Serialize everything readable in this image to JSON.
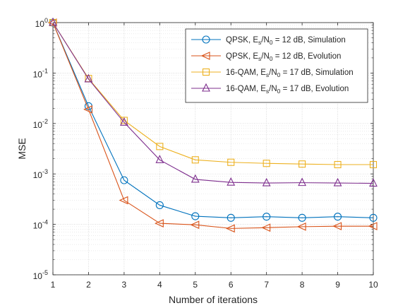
{
  "chart_data": {
    "type": "line",
    "xlabel": "Number of iterations",
    "ylabel": "MSE",
    "x": [
      1,
      2,
      3,
      4,
      5,
      6,
      7,
      8,
      9,
      10
    ],
    "xlim": [
      1,
      10
    ],
    "ylim": [
      1e-05,
      1
    ],
    "yscale": "log",
    "grid": "on (major and minor)",
    "legend_position": "top-right",
    "x_tick_labels": [
      "1",
      "2",
      "3",
      "4",
      "5",
      "6",
      "7",
      "8",
      "9",
      "10"
    ],
    "y_tick_labels": [
      {
        "base": "10",
        "exp": "-5"
      },
      {
        "base": "10",
        "exp": "-4"
      },
      {
        "base": "10",
        "exp": "-3"
      },
      {
        "base": "10",
        "exp": "-2"
      },
      {
        "base": "10",
        "exp": "-1"
      },
      {
        "base": "10",
        "exp": "0"
      }
    ],
    "series": [
      {
        "name": "QPSK, Es/N0 = 12 dB, Simulation",
        "legend_parts": [
          "QPSK, E",
          "s",
          "/N",
          "0",
          " = 12 dB, Simulation"
        ],
        "color": "#0072BD",
        "marker": "circle",
        "values": [
          1.0,
          0.022,
          0.00075,
          0.00024,
          0.000145,
          0.000135,
          0.000142,
          0.000135,
          0.000142,
          0.000135
        ]
      },
      {
        "name": "QPSK, Es/N0 = 12 dB, Evolution",
        "legend_parts": [
          "QPSK, E",
          "s",
          "/N",
          "0",
          " = 12 dB, Evolution"
        ],
        "color": "#D95319",
        "marker": "triangle-left",
        "values": [
          1.0,
          0.019,
          0.0003,
          0.000105,
          9.8e-05,
          8.3e-05,
          8.6e-05,
          9e-05,
          9.2e-05,
          9.2e-05
        ]
      },
      {
        "name": "16-QAM, Es/N0 = 17 dB, Simulation",
        "legend_parts": [
          "16-QAM, E",
          "s",
          "/N",
          "0",
          " = 17 dB, Simulation"
        ],
        "color": "#EDB120",
        "marker": "square",
        "values": [
          1.0,
          0.078,
          0.0115,
          0.0035,
          0.0019,
          0.0017,
          0.00162,
          0.00157,
          0.00153,
          0.00153
        ]
      },
      {
        "name": "16-QAM, Es/N0 = 17 dB, Evolution",
        "legend_parts": [
          "16-QAM, E",
          "s",
          "/N",
          "0",
          " = 17 dB, Evolution"
        ],
        "color": "#7E2F8E",
        "marker": "triangle-up",
        "values": [
          1.0,
          0.076,
          0.0105,
          0.0019,
          0.00078,
          0.00068,
          0.00066,
          0.00067,
          0.00066,
          0.00065
        ]
      }
    ]
  }
}
